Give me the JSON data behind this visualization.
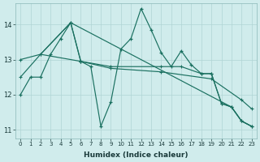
{
  "bg_color": "#d0ecec",
  "grid_color": "#b0d4d4",
  "line_color": "#1a7060",
  "xlabel": "Humidex (Indice chaleur)",
  "xlim": [
    -0.5,
    23.5
  ],
  "ylim": [
    10.75,
    14.6
  ],
  "yticks": [
    11,
    12,
    13,
    14
  ],
  "xticks": [
    0,
    1,
    2,
    3,
    4,
    5,
    6,
    7,
    8,
    9,
    10,
    11,
    12,
    13,
    14,
    15,
    16,
    17,
    18,
    19,
    20,
    21,
    22,
    23
  ],
  "line1_x": [
    0,
    1,
    2,
    3,
    4,
    5,
    6,
    7,
    8,
    9,
    10,
    11,
    12,
    13,
    14,
    15,
    16,
    17,
    18,
    19,
    20,
    21,
    22,
    23
  ],
  "line1_y": [
    12.0,
    12.5,
    12.5,
    13.15,
    13.6,
    14.05,
    12.95,
    12.8,
    11.1,
    11.8,
    13.3,
    13.6,
    14.45,
    13.85,
    13.2,
    12.8,
    13.25,
    12.85,
    12.6,
    12.6,
    11.75,
    11.65,
    11.25,
    11.1
  ],
  "line2_x": [
    2,
    5,
    10,
    21,
    22,
    23
  ],
  "line2_y": [
    13.15,
    14.05,
    13.3,
    11.65,
    11.25,
    11.1
  ],
  "line3_x": [
    0,
    2,
    5,
    6,
    9,
    14,
    16,
    18,
    19,
    20,
    21,
    22,
    23
  ],
  "line3_y": [
    13.0,
    13.15,
    14.05,
    12.95,
    12.8,
    12.8,
    12.8,
    12.6,
    12.6,
    11.75,
    11.65,
    11.25,
    11.1
  ],
  "line4_x": [
    0,
    2,
    6,
    9,
    14,
    19,
    22,
    23
  ],
  "line4_y": [
    12.5,
    13.15,
    12.95,
    12.75,
    12.65,
    12.45,
    11.85,
    11.6
  ]
}
